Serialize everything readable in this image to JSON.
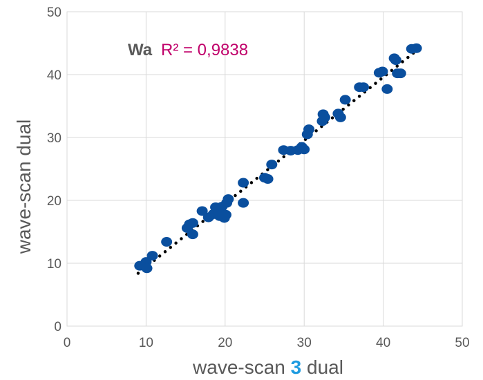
{
  "chart_data": {
    "type": "scatter",
    "xlabel": {
      "prefix": "wave-scan ",
      "highlight": "3",
      "suffix": " dual"
    },
    "ylabel": "wave-scan dual",
    "xlim": [
      0,
      50
    ],
    "ylim": [
      0,
      50
    ],
    "xticks": [
      "0",
      "10",
      "20",
      "30",
      "40",
      "50"
    ],
    "yticks": [
      "0",
      "10",
      "20",
      "30",
      "40",
      "50"
    ],
    "grid": {
      "x": true,
      "y": true
    },
    "legend": {
      "label": "Wa",
      "position": "top-left"
    },
    "annotation": "R² = 0,9838",
    "trendline": {
      "slope": 1.006,
      "intercept": -0.65,
      "x_start": 9.0,
      "x_end": 44.3,
      "style": "dotted"
    },
    "series": [
      {
        "name": "Wa",
        "points": [
          [
            9.2,
            9.6
          ],
          [
            10.0,
            10.2
          ],
          [
            10.1,
            9.2
          ],
          [
            10.8,
            11.2
          ],
          [
            12.6,
            13.4
          ],
          [
            15.2,
            15.6
          ],
          [
            15.5,
            16.2
          ],
          [
            15.9,
            16.4
          ],
          [
            15.9,
            14.6
          ],
          [
            17.1,
            18.3
          ],
          [
            17.9,
            17.3
          ],
          [
            18.5,
            17.8
          ],
          [
            18.8,
            18.9
          ],
          [
            19.2,
            18.2
          ],
          [
            19.3,
            17.5
          ],
          [
            19.6,
            19.0
          ],
          [
            19.9,
            17.2
          ],
          [
            20.1,
            17.7
          ],
          [
            20.2,
            19.6
          ],
          [
            20.4,
            20.2
          ],
          [
            22.3,
            22.8
          ],
          [
            22.3,
            19.6
          ],
          [
            25.0,
            23.6
          ],
          [
            25.4,
            23.4
          ],
          [
            25.9,
            25.7
          ],
          [
            27.4,
            28.0
          ],
          [
            28.3,
            27.9
          ],
          [
            29.2,
            28.0
          ],
          [
            29.7,
            28.5
          ],
          [
            30.0,
            28.1
          ],
          [
            30.4,
            30.5
          ],
          [
            30.6,
            31.3
          ],
          [
            32.3,
            32.6
          ],
          [
            32.4,
            33.7
          ],
          [
            32.6,
            33.2
          ],
          [
            34.3,
            33.8
          ],
          [
            34.6,
            33.2
          ],
          [
            35.2,
            36.0
          ],
          [
            37.0,
            38.0
          ],
          [
            37.5,
            38.0
          ],
          [
            39.5,
            40.3
          ],
          [
            39.9,
            40.5
          ],
          [
            40.5,
            37.7
          ],
          [
            41.4,
            42.6
          ],
          [
            41.6,
            42.3
          ],
          [
            41.8,
            40.2
          ],
          [
            42.2,
            40.2
          ],
          [
            43.6,
            44.1
          ],
          [
            44.2,
            44.2
          ]
        ]
      }
    ]
  },
  "colors": {
    "marker": "#0a4f9e",
    "trendline": "#000000",
    "annotation": "#c0006a",
    "legend": "#0a4f9e",
    "highlight": "#1e9be0",
    "grid": "#d9d9d9",
    "axis_text": "#595959"
  }
}
